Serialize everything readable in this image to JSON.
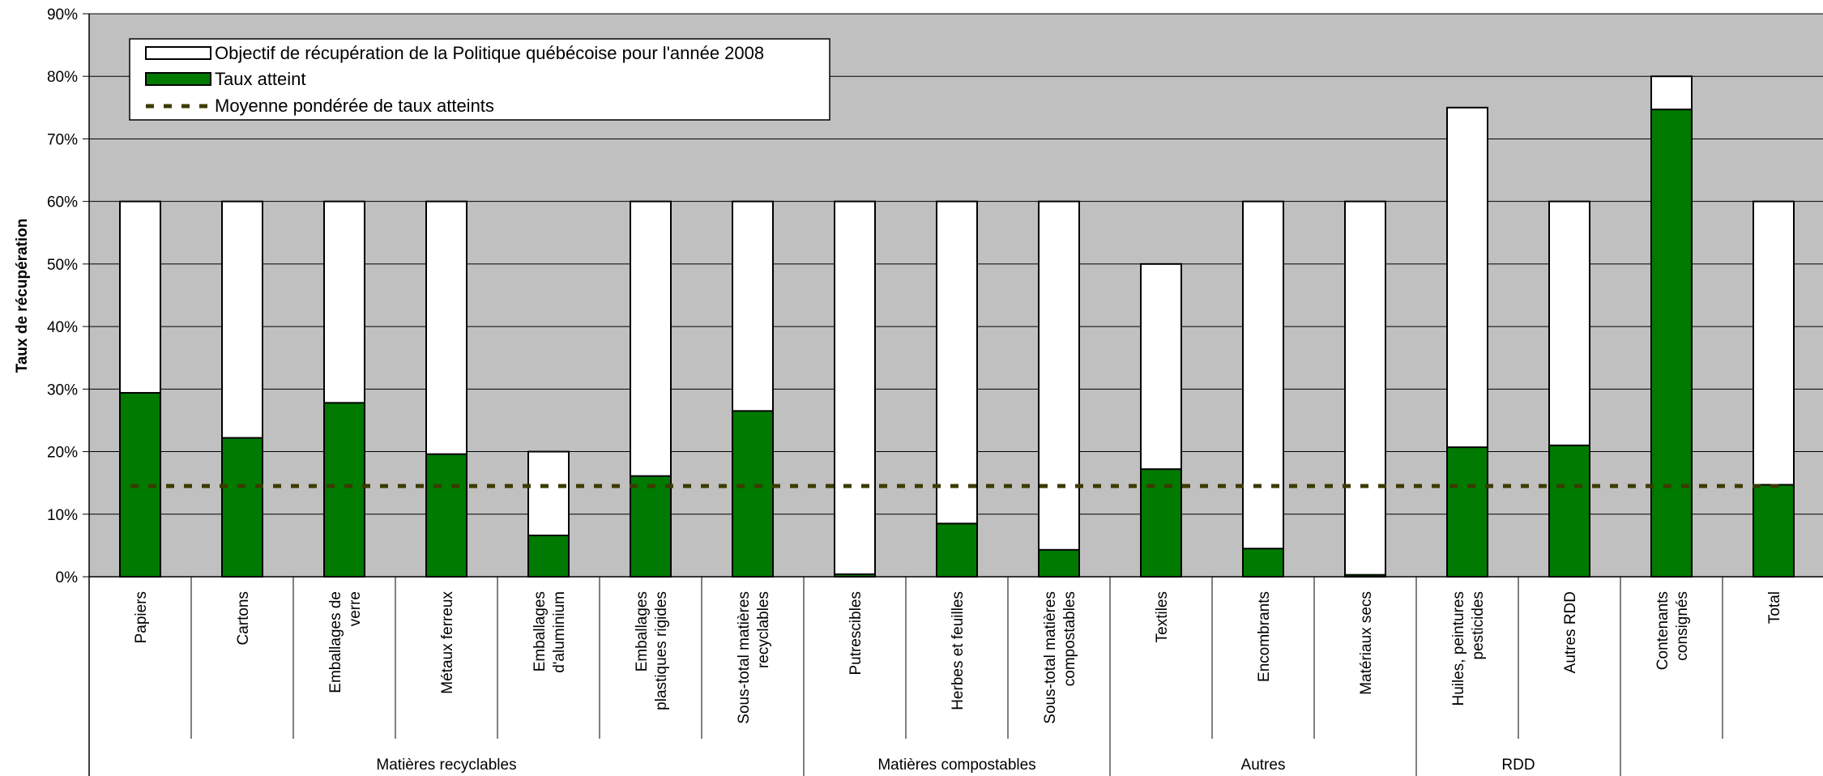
{
  "chart_data": {
    "type": "bar",
    "ylabel": "Taux de récupération",
    "ylim": [
      0,
      90
    ],
    "yticks": [
      "0%",
      "10%",
      "20%",
      "30%",
      "40%",
      "50%",
      "60%",
      "70%",
      "80%",
      "90%"
    ],
    "grid": true,
    "legend_position": "top-left",
    "categories": [
      [
        "Papiers"
      ],
      [
        "Cartons"
      ],
      [
        "Emballages de",
        "verre"
      ],
      [
        "Métaux ferreux"
      ],
      [
        "Emballages",
        "d'aluminium"
      ],
      [
        "Emballages",
        "plastiques rigides"
      ],
      [
        "Sous-total matières",
        "recyclables"
      ],
      [
        "Putrescibles"
      ],
      [
        "Herbes et feuilles"
      ],
      [
        "Sous-total matières",
        "compostables"
      ],
      [
        "Textiles"
      ],
      [
        "Encombrants"
      ],
      [
        "Matériaux secs"
      ],
      [
        "Huiles, peintures",
        "pesticides"
      ],
      [
        "Autres RDD"
      ],
      [
        "Contenants",
        "consignés"
      ],
      [
        "Total"
      ]
    ],
    "groups": [
      {
        "name": "Matières recyclables",
        "start": 0,
        "end": 6
      },
      {
        "name": "Matières compostables",
        "start": 7,
        "end": 9
      },
      {
        "name": "Autres",
        "start": 10,
        "end": 12
      },
      {
        "name": "RDD",
        "start": 13,
        "end": 14
      }
    ],
    "series": [
      {
        "name": "Objectif de récupération de la Politique québécoise pour l'année 2008",
        "type": "bar",
        "color": "#ffffff",
        "values": [
          60,
          60,
          60,
          60,
          20,
          60,
          60,
          60,
          60,
          60,
          50,
          60,
          60,
          75,
          60,
          80,
          60
        ]
      },
      {
        "name": "Taux atteint",
        "type": "bar",
        "color": "#007a00",
        "values": [
          29.4,
          22.2,
          27.8,
          19.6,
          6.6,
          16.1,
          26.5,
          0.4,
          8.5,
          4.3,
          17.2,
          4.5,
          0.3,
          20.7,
          21,
          74.7,
          14.7
        ]
      },
      {
        "name": "Moyenne pondérée de taux atteints",
        "type": "line",
        "color": "#3b3b00",
        "value": 14.5
      }
    ],
    "colors": {
      "plot_background": "#c0c0c0",
      "gridline": "#000000"
    }
  }
}
